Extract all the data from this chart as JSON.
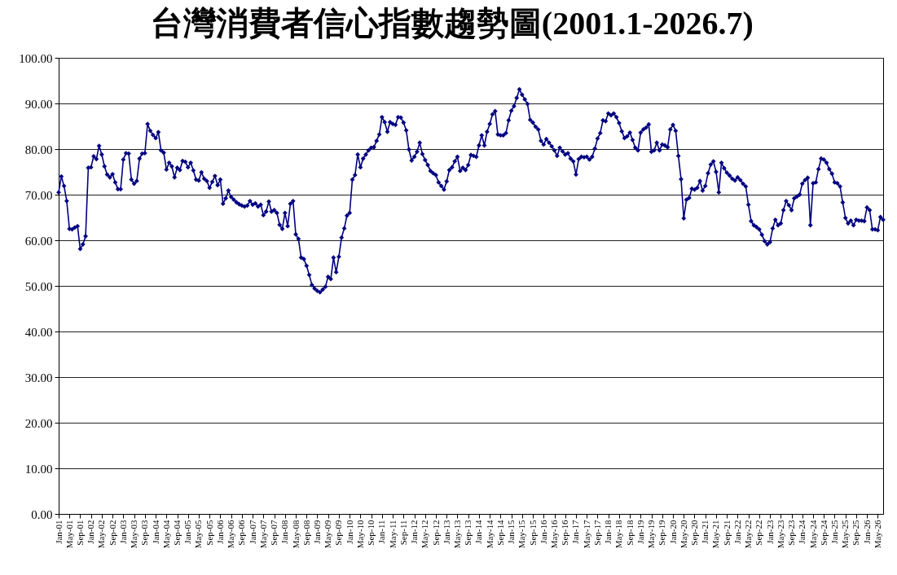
{
  "chart_data": {
    "type": "line",
    "title": "台灣消費者信心指數趨勢圖(2001.1-2026.7)",
    "categories": [
      "Jan-01",
      null,
      null,
      null,
      "May-01",
      null,
      null,
      null,
      "Sep-01",
      null,
      null,
      null,
      "Jan-02",
      null,
      null,
      null,
      "May-02",
      null,
      null,
      null,
      "Sep-02",
      null,
      null,
      null,
      "Jan-03",
      null,
      null,
      null,
      "May-03",
      null,
      null,
      null,
      "Sep-03",
      null,
      null,
      null,
      "Jan-04",
      null,
      null,
      null,
      "May-04",
      null,
      null,
      null,
      "Sep-04",
      null,
      null,
      null,
      "Jan-05",
      null,
      null,
      null,
      "May-05",
      null,
      null,
      null,
      "Sep-05",
      null,
      null,
      null,
      "Jan-06",
      null,
      null,
      null,
      "May-06",
      null,
      null,
      null,
      "Sep-06",
      null,
      null,
      null,
      "Jan-07",
      null,
      null,
      null,
      "May-07",
      null,
      null,
      null,
      "Sep-07",
      null,
      null,
      null,
      "Jan-08",
      null,
      null,
      null,
      "May-08",
      null,
      null,
      null,
      "Sep-08",
      null,
      null,
      null,
      "Jan-09",
      null,
      null,
      null,
      "May-09",
      null,
      null,
      null,
      "Sep-09",
      null,
      null,
      null,
      "Jan-10",
      null,
      null,
      null,
      "May-10",
      null,
      null,
      null,
      "Sep-10",
      null,
      null,
      null,
      "Jan-11",
      null,
      null,
      null,
      "May-11",
      null,
      null,
      null,
      "Sep-11",
      null,
      null,
      null,
      "Jan-12",
      null,
      null,
      null,
      "May-12",
      null,
      null,
      null,
      "Sep-12",
      null,
      null,
      null,
      "Jan-13",
      null,
      null,
      null,
      "May-13",
      null,
      null,
      null,
      "Sep-13",
      null,
      null,
      null,
      "Jan-14",
      null,
      null,
      null,
      "May-14",
      null,
      null,
      null,
      "Sep-14",
      null,
      null,
      null,
      "Jan-15",
      null,
      null,
      null,
      "May-15",
      null,
      null,
      null,
      "Sep-15",
      null,
      null,
      null,
      "Jan-16",
      null,
      null,
      null,
      "May-16",
      null,
      null,
      null,
      "Sep-16",
      null,
      null,
      null,
      "Jan-17",
      null,
      null,
      null,
      "May-17",
      null,
      null,
      null,
      "Sep-17",
      null,
      null,
      null,
      "Jan-18",
      null,
      null,
      null,
      "May-18",
      null,
      null,
      null,
      "Sep-18",
      null,
      null,
      null,
      "Jan-19",
      null,
      null,
      null,
      "May-19",
      null,
      null,
      null,
      "Sep-19",
      null,
      null,
      null,
      "Jan-20",
      null,
      null,
      null,
      "May-20",
      null,
      null,
      null,
      "Sep-20",
      null,
      null,
      null,
      "Jan-21",
      null,
      null,
      null,
      "May-21",
      null,
      null,
      null,
      "Sep-21",
      null,
      null,
      null,
      "Jan-22",
      null,
      null,
      null,
      "May-22",
      null,
      null,
      null,
      "Sep-22",
      null,
      null,
      null,
      "Jan-23",
      null,
      null,
      null,
      "May-23",
      null,
      null,
      null,
      "Sep-23",
      null,
      null,
      null,
      "Jan-24",
      null,
      null,
      null,
      "May-24",
      null,
      null,
      null,
      "Sep-24",
      null,
      null,
      null,
      "Jan-25",
      null,
      null,
      null,
      "May-25",
      null,
      null,
      null,
      "Sep-25",
      null,
      null,
      null,
      "Jan-26",
      null,
      null,
      null,
      "May-26",
      null,
      null
    ],
    "values": [
      70.5,
      74.0,
      71.9,
      68.6,
      62.5,
      62.4,
      62.8,
      63.1,
      58.1,
      59.1,
      60.9,
      75.9,
      76.0,
      78.4,
      77.8,
      80.7,
      78.8,
      76.2,
      74.4,
      73.8,
      74.5,
      72.7,
      71.2,
      71.2,
      77.7,
      79.1,
      79.0,
      73.3,
      72.4,
      73.0,
      77.9,
      79.0,
      79.1,
      85.5,
      84.0,
      83.1,
      82.4,
      83.7,
      79.7,
      79.2,
      75.5,
      77.0,
      76.2,
      73.8,
      75.9,
      75.4,
      77.4,
      77.2,
      76.0,
      77.0,
      75.3,
      73.3,
      73.1,
      74.9,
      73.5,
      73.0,
      71.5,
      72.8,
      74.1,
      72.1,
      73.3,
      68.0,
      69.2,
      70.9,
      69.5,
      68.9,
      68.3,
      67.9,
      67.6,
      67.4,
      67.6,
      68.6,
      67.8,
      68.1,
      67.4,
      67.8,
      65.5,
      66.3,
      68.5,
      66.3,
      66.6,
      66.0,
      63.4,
      62.5,
      66.0,
      63.1,
      68.0,
      68.6,
      61.3,
      60.3,
      56.2,
      55.9,
      54.4,
      52.4,
      50.2,
      49.4,
      48.9,
      48.6,
      49.2,
      49.8,
      52.0,
      51.5,
      56.2,
      53.0,
      56.4,
      60.6,
      62.6,
      65.4,
      66.0,
      73.3,
      74.3,
      78.8,
      76.0,
      77.9,
      78.8,
      79.7,
      80.3,
      80.4,
      81.8,
      83.2,
      87.0,
      85.9,
      83.8,
      85.9,
      85.5,
      85.3,
      87.0,
      86.9,
      85.8,
      84.1,
      79.9,
      77.5,
      78.3,
      79.4,
      81.4,
      78.9,
      77.6,
      76.5,
      75.2,
      74.7,
      74.3,
      72.7,
      71.9,
      71.1,
      72.9,
      75.4,
      76.0,
      77.3,
      78.3,
      75.2,
      75.9,
      75.4,
      76.5,
      78.7,
      78.5,
      78.3,
      80.8,
      83.0,
      80.8,
      83.8,
      85.5,
      87.6,
      88.3,
      83.2,
      83.0,
      83.0,
      83.5,
      86.3,
      88.4,
      89.4,
      91.2,
      93.1,
      91.9,
      90.9,
      89.9,
      86.4,
      85.8,
      84.9,
      84.3,
      81.8,
      81.0,
      82.2,
      81.4,
      80.6,
      79.7,
      78.5,
      80.3,
      79.5,
      78.8,
      79.1,
      77.9,
      77.3,
      74.4,
      77.8,
      78.3,
      78.2,
      78.3,
      77.7,
      78.3,
      80.1,
      82.3,
      83.5,
      86.3,
      86.1,
      87.8,
      87.4,
      87.8,
      87.0,
      85.7,
      83.9,
      82.4,
      82.8,
      83.6,
      82.0,
      80.3,
      79.7,
      83.6,
      84.3,
      84.7,
      85.4,
      79.4,
      79.7,
      81.4,
      79.7,
      81.0,
      80.8,
      80.4,
      84.3,
      85.3,
      84.0,
      78.5,
      73.4,
      64.8,
      68.9,
      69.3,
      71.3,
      71.1,
      71.5,
      73.0,
      70.9,
      71.9,
      74.7,
      76.6,
      77.3,
      75.0,
      70.5,
      77.0,
      75.8,
      74.8,
      74.2,
      73.5,
      73.1,
      73.8,
      73.2,
      72.4,
      71.8,
      67.8,
      64.2,
      63.3,
      62.9,
      62.4,
      61.2,
      59.8,
      59.1,
      59.6,
      62.6,
      64.5,
      63.3,
      63.7,
      66.6,
      68.6,
      67.7,
      66.6,
      69.2,
      69.6,
      70.0,
      72.4,
      73.2,
      73.7,
      63.3,
      72.5,
      72.7,
      75.6,
      77.9,
      77.7,
      77.0,
      75.6,
      74.6,
      72.7,
      72.5,
      71.8,
      68.3,
      64.9,
      63.7,
      64.3,
      63.3,
      64.5,
      64.3,
      64.3,
      64.2,
      67.2,
      66.6,
      62.4,
      62.4,
      62.2,
      65.1,
      64.5
    ],
    "color": "#000080",
    "ylim": [
      0,
      100
    ],
    "yticks": [
      {
        "value": 0,
        "label": "0.00"
      },
      {
        "value": 10,
        "label": "10.00"
      },
      {
        "value": 20,
        "label": "20.00"
      },
      {
        "value": 30,
        "label": "30.00"
      },
      {
        "value": 40,
        "label": "40.00"
      },
      {
        "value": 50,
        "label": "50.00"
      },
      {
        "value": 60,
        "label": "60.00"
      },
      {
        "value": 70,
        "label": "70.00"
      },
      {
        "value": 80,
        "label": "80.00"
      },
      {
        "value": 90,
        "label": "90.00"
      },
      {
        "value": 100,
        "label": "100.00"
      }
    ],
    "grid": "y",
    "marker": "diamond"
  }
}
